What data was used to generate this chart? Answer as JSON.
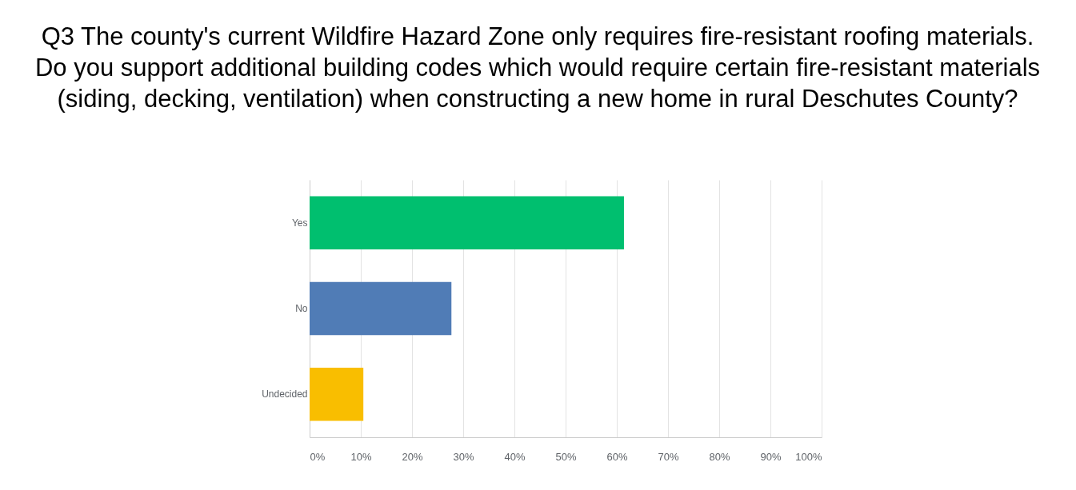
{
  "chart_data": {
    "type": "bar",
    "orientation": "horizontal",
    "title": "Q3 The county's current Wildfire Hazard Zone only requires fire-resistant roofing materials.\nDo you support additional building codes which would require certain fire-resistant materials\n(siding, decking, ventilation) when constructing a new home in rural Deschutes County?",
    "categories": [
      "Yes",
      "No",
      "Undecided"
    ],
    "values": [
      61.4,
      27.7,
      10.5
    ],
    "colors": [
      "#00bf6f",
      "#507cb6",
      "#f9be00"
    ],
    "xlim": [
      0,
      100
    ],
    "xticks": [
      {
        "value": 0,
        "label": "0%"
      },
      {
        "value": 10,
        "label": "10%"
      },
      {
        "value": 20,
        "label": "20%"
      },
      {
        "value": 30,
        "label": "30%"
      },
      {
        "value": 40,
        "label": "40%"
      },
      {
        "value": 50,
        "label": "50%"
      },
      {
        "value": 60,
        "label": "60%"
      },
      {
        "value": 70,
        "label": "70%"
      },
      {
        "value": 80,
        "label": "80%"
      },
      {
        "value": 90,
        "label": "90%"
      },
      {
        "value": 100,
        "label": "100%"
      }
    ],
    "grid": "x",
    "legend": false
  }
}
